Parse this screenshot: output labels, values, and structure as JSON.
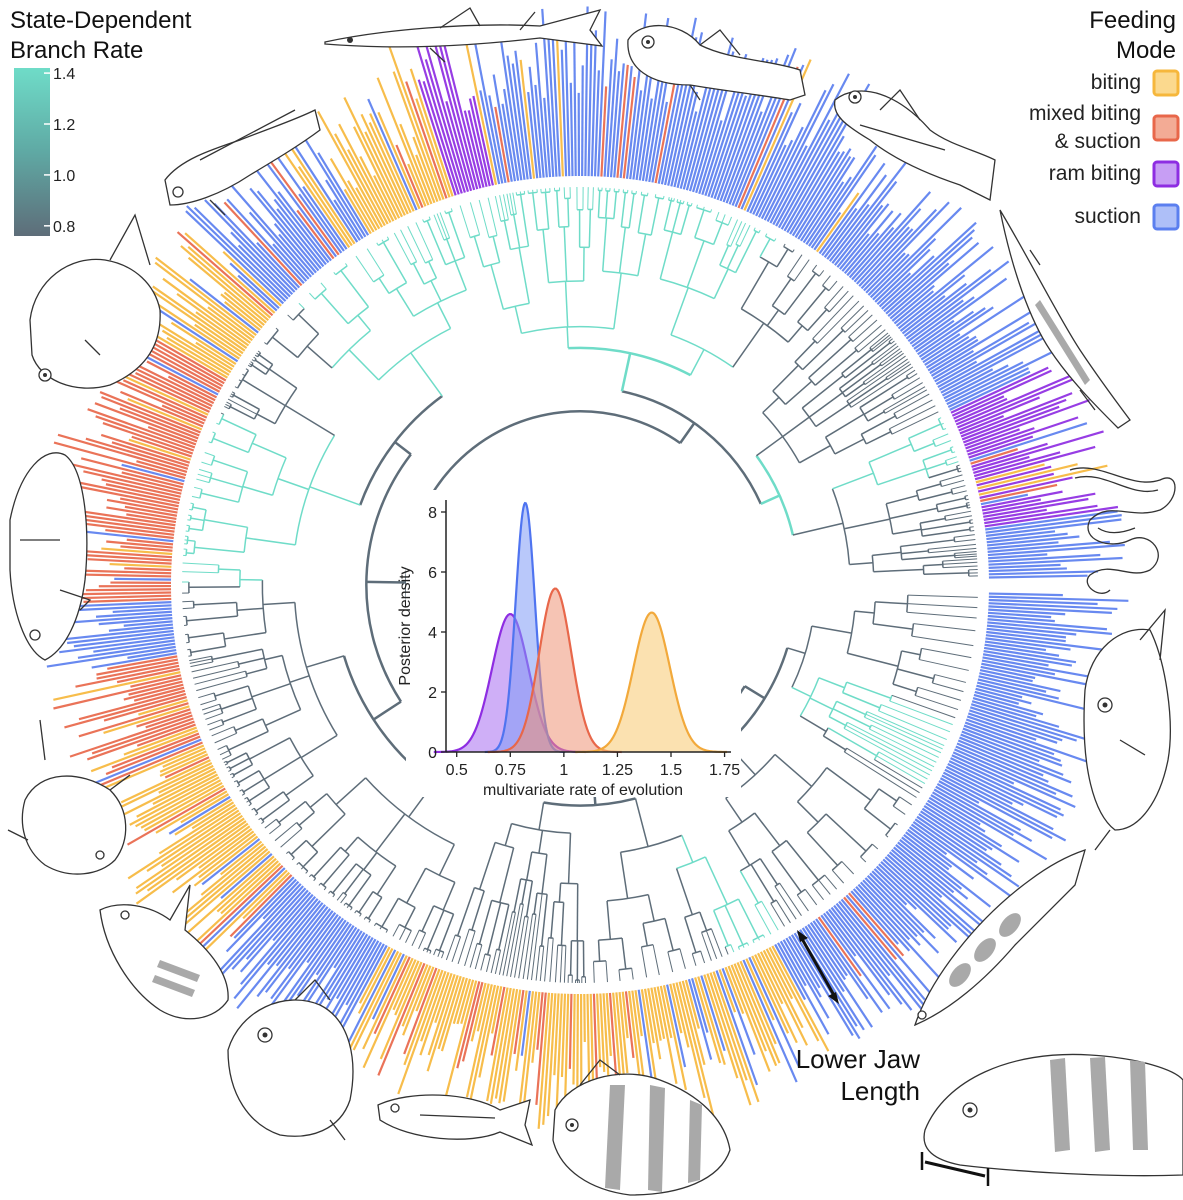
{
  "rate_legend": {
    "title_line1": "State-Dependent",
    "title_line2": "Branch Rate",
    "ticks": [
      "1.4",
      "1.2",
      "1.0",
      "0.8"
    ],
    "tick_values": [
      1.4,
      1.2,
      1.0,
      0.8
    ],
    "range": [
      0.76,
      1.42
    ],
    "color_high": "#6fdcc8",
    "color_low": "#5e6d79"
  },
  "mode_legend": {
    "title_line1": "Feeding",
    "title_line2": "Mode",
    "items": [
      {
        "line1": "biting",
        "line2": "",
        "color": "#f6b73c",
        "fill": "#fbd98e"
      },
      {
        "line1": "mixed biting",
        "line2": "& suction",
        "color": "#e8674a",
        "fill": "#f3ab95"
      },
      {
        "line1": "ram biting",
        "line2": "",
        "color": "#8e2de2",
        "fill": "#c79ef4"
      },
      {
        "line1": "suction",
        "line2": "",
        "color": "#5b7fef",
        "fill": "#aebff8"
      }
    ]
  },
  "lower_jaw": {
    "line1": "Lower Jaw",
    "line2": "Length"
  },
  "chart_data": {
    "type": "area",
    "xlabel": "multivariate rate of evolution",
    "ylabel": "Posterior density",
    "xlim": [
      0.45,
      1.78
    ],
    "ylim": [
      0,
      8.4
    ],
    "x_ticks": [
      "0.5",
      "0.75",
      "1",
      "1.25",
      "1.5",
      "1.75"
    ],
    "x_tick_values": [
      0.5,
      0.75,
      1,
      1.25,
      1.5,
      1.75
    ],
    "y_ticks": [
      "0",
      "2",
      "4",
      "6",
      "8"
    ],
    "y_tick_values": [
      0,
      2,
      4,
      6,
      8
    ],
    "series": [
      {
        "mode": "ram biting",
        "mean": 0.75,
        "peak": 4.6,
        "sd": 0.085,
        "color": "#8e2de2",
        "fill": "#a76df0"
      },
      {
        "mode": "suction",
        "mean": 0.82,
        "peak": 8.3,
        "sd": 0.045,
        "color": "#4f74f0",
        "fill": "#7f9af5"
      },
      {
        "mode": "mixed biting & suction",
        "mean": 0.96,
        "peak": 5.45,
        "sd": 0.075,
        "color": "#e8674a",
        "fill": "#ee9477"
      },
      {
        "mode": "biting",
        "mean": 1.41,
        "peak": 4.65,
        "sd": 0.085,
        "color": "#f2a93b",
        "fill": "#f7c86f"
      }
    ]
  },
  "fish_icons": [
    "needlefish-icon",
    "goby-icon",
    "cardinalfish-icon",
    "halfbeak-icon",
    "eel-icon",
    "grouper-icon",
    "pike-cichlid-icon",
    "drum-icon",
    "butterflyfish-icon",
    "herring-icon",
    "tang-icon",
    "filefish-icon",
    "frogfish-icon",
    "snapper-icon",
    "damselfish-icon",
    "blenny-icon"
  ]
}
